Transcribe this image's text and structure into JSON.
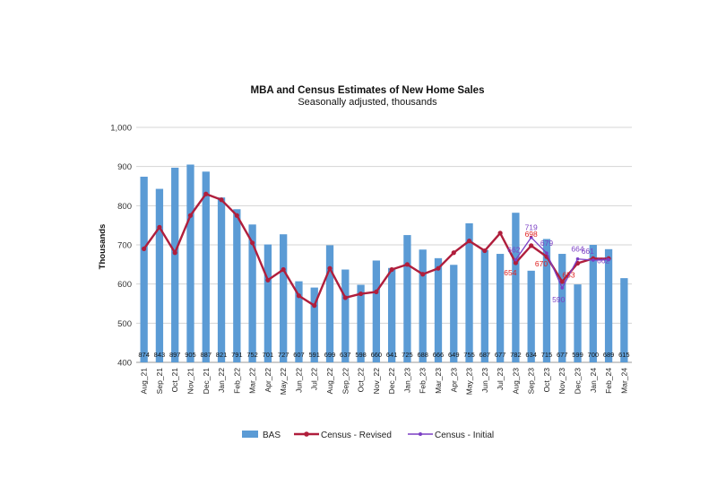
{
  "chart_data": {
    "type": "bar",
    "title": "MBA and Census Estimates of New Home Sales",
    "subtitle": "Seasonally adjusted, thousands",
    "ylabel": "Thousands",
    "ylim": [
      400,
      1000
    ],
    "yticks": [
      400,
      500,
      600,
      700,
      800,
      900,
      1000
    ],
    "ytick_labels": [
      "400",
      "500",
      "600",
      "700",
      "800",
      "900",
      "1,000"
    ],
    "categories": [
      "Aug_21",
      "Sep_21",
      "Oct_21",
      "Nov_21",
      "Dec_21",
      "Jan_22",
      "Feb_22",
      "Mar_22",
      "Apr_22",
      "May_22",
      "Jun_22",
      "Jul_22",
      "Aug_22",
      "Sep_22",
      "Oct_22",
      "Nov_22",
      "Dec_22",
      "Jan_23",
      "Feb_23",
      "Mar_23",
      "Apr_23",
      "May_23",
      "Jun_23",
      "Jul_23",
      "Aug_23",
      "Sep_23",
      "Oct_23",
      "Nov_23",
      "Dec_23",
      "Jan_24",
      "Feb_24",
      "Mar_24"
    ],
    "legend_position": "bottom",
    "series": [
      {
        "name": "BAS",
        "kind": "bar",
        "color": "#5b9bd5",
        "values": [
          874,
          843,
          897,
          905,
          887,
          821,
          791,
          752,
          701,
          727,
          607,
          591,
          699,
          637,
          598,
          660,
          641,
          725,
          688,
          666,
          649,
          755,
          687,
          677,
          782,
          634,
          715,
          677,
          599,
          700,
          689,
          615
        ]
      },
      {
        "name": "Census - Revised",
        "kind": "line",
        "color": "#b01e3c",
        "values": [
          690,
          745,
          680,
          775,
          830,
          815,
          775,
          705,
          610,
          637,
          570,
          545,
          640,
          565,
          575,
          580,
          637,
          650,
          625,
          640,
          680,
          710,
          685,
          730,
          654,
          698,
          670,
          606,
          653,
          665,
          665,
          null
        ]
      },
      {
        "name": "Census - Initial",
        "kind": "line",
        "color": "#7b3fc4",
        "values": [
          null,
          null,
          null,
          null,
          null,
          null,
          null,
          null,
          null,
          null,
          null,
          null,
          null,
          null,
          null,
          null,
          null,
          null,
          null,
          null,
          null,
          null,
          null,
          null,
          662,
          719,
          679,
          590,
          664,
          661,
          662,
          null
        ]
      }
    ],
    "annotations": {
      "revised": [
        {
          "index": 24,
          "text": "654"
        },
        {
          "index": 25,
          "text": "698"
        },
        {
          "index": 26,
          "text": "670"
        },
        {
          "index": 28,
          "text": "653"
        }
      ],
      "initial": [
        {
          "index": 24,
          "text": "662"
        },
        {
          "index": 25,
          "text": "719"
        },
        {
          "index": 26,
          "text": "679"
        },
        {
          "index": 27,
          "text": "590"
        },
        {
          "index": 28,
          "text": "664"
        },
        {
          "index": 29,
          "text": "661"
        },
        {
          "index": 30,
          "text": "662"
        }
      ]
    }
  }
}
